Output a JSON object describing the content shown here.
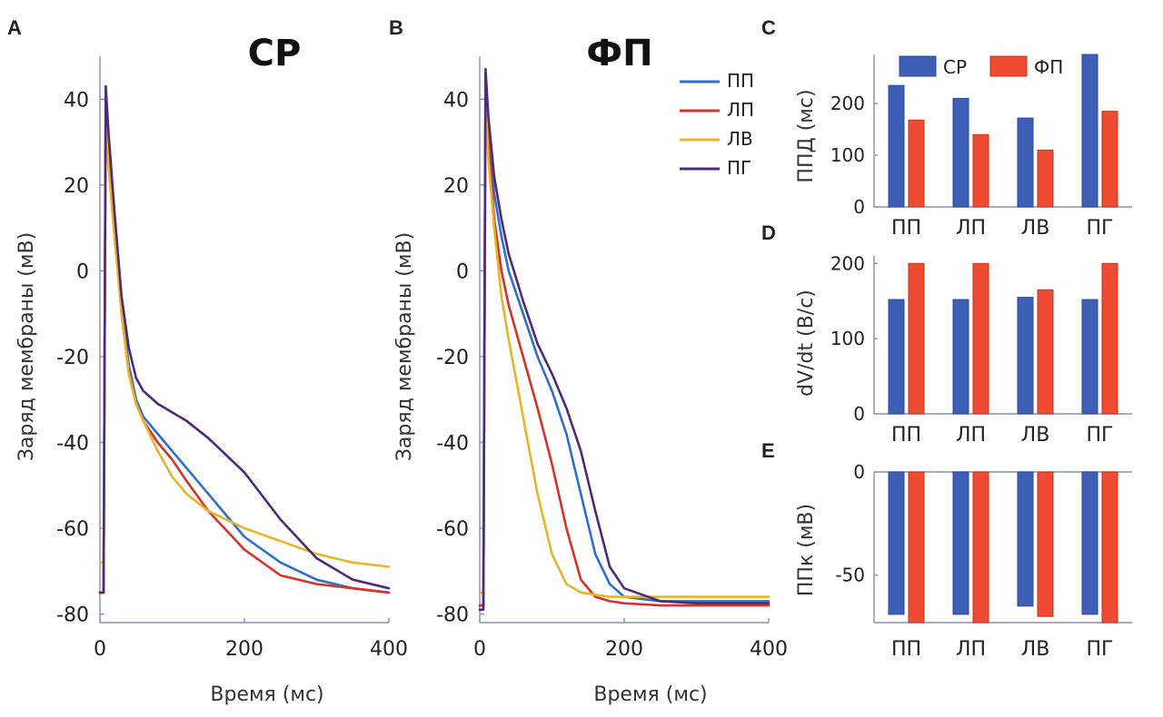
{
  "colors": {
    "ПП": "#2f6fcb",
    "ЛП": "#d7322a",
    "ЛВ": "#e6b52a",
    "ПГ": "#4f2a7a",
    "СР": "#3e5fb6",
    "ФП": "#ef4a32",
    "axis": "#8a8fb8"
  },
  "chart_data": [
    {
      "id": "A",
      "type": "line",
      "panel_letter": "A",
      "title": "СР",
      "xlabel": "Время (мс)",
      "ylabel": "Заряд мембраны (мВ)",
      "xlim": [
        0,
        400
      ],
      "ylim": [
        -82,
        50
      ],
      "xticks": [
        0,
        200,
        400
      ],
      "yticks": [
        40,
        20,
        0,
        -20,
        -40,
        -60,
        -80
      ],
      "series": [
        {
          "name": "ПП",
          "x": [
            0,
            5,
            8,
            12,
            20,
            30,
            40,
            50,
            60,
            80,
            100,
            120,
            150,
            200,
            250,
            300,
            350,
            400
          ],
          "y": [
            -75,
            -75,
            42,
            30,
            12,
            -8,
            -22,
            -30,
            -34,
            -38,
            -42,
            -46,
            -52,
            -62,
            -68,
            -72,
            -74,
            -75
          ]
        },
        {
          "name": "ЛП",
          "x": [
            0,
            5,
            8,
            12,
            20,
            30,
            40,
            50,
            60,
            80,
            100,
            120,
            150,
            200,
            250,
            300,
            350,
            400
          ],
          "y": [
            -75,
            -75,
            42,
            30,
            11,
            -10,
            -24,
            -31,
            -35,
            -40,
            -44,
            -49,
            -56,
            -65,
            -71,
            -73,
            -74,
            -75
          ]
        },
        {
          "name": "ЛВ",
          "x": [
            0,
            5,
            8,
            12,
            20,
            30,
            40,
            50,
            60,
            80,
            100,
            120,
            150,
            200,
            250,
            300,
            350,
            400
          ],
          "y": [
            -68,
            -68,
            34,
            24,
            8,
            -10,
            -24,
            -31,
            -35,
            -42,
            -48,
            -52,
            -56,
            -60,
            -63,
            -66,
            -68,
            -69
          ]
        },
        {
          "name": "ПГ",
          "x": [
            0,
            5,
            8,
            12,
            20,
            30,
            40,
            50,
            60,
            80,
            100,
            120,
            150,
            200,
            250,
            300,
            350,
            400
          ],
          "y": [
            -75,
            -75,
            43,
            32,
            14,
            -6,
            -18,
            -25,
            -28,
            -31,
            -33,
            -35,
            -39,
            -47,
            -58,
            -67,
            -72,
            -74
          ]
        }
      ]
    },
    {
      "id": "B",
      "type": "line",
      "panel_letter": "B",
      "title": "ФП",
      "xlabel": "Время (мс)",
      "ylabel": "Заряд мембраны (мВ)",
      "xlim": [
        0,
        400
      ],
      "ylim": [
        -82,
        50
      ],
      "xticks": [
        0,
        200,
        400
      ],
      "yticks": [
        40,
        20,
        0,
        -20,
        -40,
        -60,
        -80
      ],
      "series": [
        {
          "name": "ПП",
          "x": [
            0,
            5,
            8,
            12,
            20,
            30,
            40,
            60,
            80,
            100,
            120,
            140,
            160,
            180,
            200,
            250,
            300,
            400
          ],
          "y": [
            -78,
            -78,
            46,
            34,
            18,
            8,
            0,
            -10,
            -20,
            -28,
            -38,
            -52,
            -66,
            -73,
            -76,
            -77,
            -77,
            -77
          ]
        },
        {
          "name": "ЛП",
          "x": [
            0,
            5,
            8,
            12,
            20,
            30,
            40,
            60,
            80,
            100,
            120,
            140,
            160,
            180,
            200,
            250,
            300,
            400
          ],
          "y": [
            -78,
            -78,
            44,
            30,
            12,
            0,
            -8,
            -20,
            -32,
            -45,
            -60,
            -72,
            -76,
            -77,
            -77.5,
            -78,
            -78,
            -78
          ]
        },
        {
          "name": "ЛВ",
          "x": [
            0,
            5,
            8,
            12,
            20,
            30,
            40,
            60,
            80,
            100,
            120,
            140,
            160,
            180,
            200,
            250,
            300,
            400
          ],
          "y": [
            -75,
            -75,
            40,
            26,
            10,
            -6,
            -16,
            -34,
            -52,
            -66,
            -73,
            -75,
            -75.5,
            -76,
            -76,
            -76,
            -76,
            -76
          ]
        },
        {
          "name": "ПГ",
          "x": [
            0,
            5,
            8,
            12,
            20,
            30,
            40,
            60,
            80,
            100,
            120,
            140,
            160,
            180,
            200,
            250,
            300,
            400
          ],
          "y": [
            -79,
            -79,
            47,
            36,
            22,
            12,
            4,
            -7,
            -17,
            -24,
            -32,
            -42,
            -56,
            -69,
            -74,
            -77,
            -77.5,
            -77.5
          ]
        }
      ],
      "legend": [
        "ПП",
        "ЛП",
        "ЛВ",
        "ПГ"
      ]
    },
    {
      "id": "C",
      "type": "bar",
      "panel_letter": "C",
      "ylabel": "ППД (мс)",
      "categories": [
        "ПП",
        "ЛП",
        "ЛВ",
        "ПГ"
      ],
      "ylim": [
        0,
        295
      ],
      "yticks": [
        0,
        100,
        200
      ],
      "series": [
        {
          "name": "СР",
          "values": [
            235,
            210,
            172,
            295
          ]
        },
        {
          "name": "ФП",
          "values": [
            168,
            140,
            110,
            185
          ]
        }
      ],
      "legend": [
        "СР",
        "ФП"
      ]
    },
    {
      "id": "D",
      "type": "bar",
      "panel_letter": "D",
      "ylabel": "dV/dt (В/с)",
      "categories": [
        "ПП",
        "ЛП",
        "ЛВ",
        "ПГ"
      ],
      "ylim": [
        0,
        210
      ],
      "yticks": [
        0,
        100,
        200
      ],
      "series": [
        {
          "name": "СР",
          "values": [
            152,
            152,
            155,
            152
          ]
        },
        {
          "name": "ФП",
          "values": [
            200,
            200,
            165,
            200
          ]
        }
      ]
    },
    {
      "id": "E",
      "type": "bar",
      "panel_letter": "E",
      "ylabel": "ППк (мВ)",
      "categories": [
        "ПП",
        "ЛП",
        "ЛВ",
        "ПГ"
      ],
      "ylim": [
        -73,
        0
      ],
      "yticks": [
        0,
        -50
      ],
      "series": [
        {
          "name": "СР",
          "values": [
            -69,
            -69,
            -65,
            -69
          ]
        },
        {
          "name": "ФП",
          "values": [
            -73,
            -73,
            -70,
            -73
          ]
        }
      ]
    }
  ]
}
